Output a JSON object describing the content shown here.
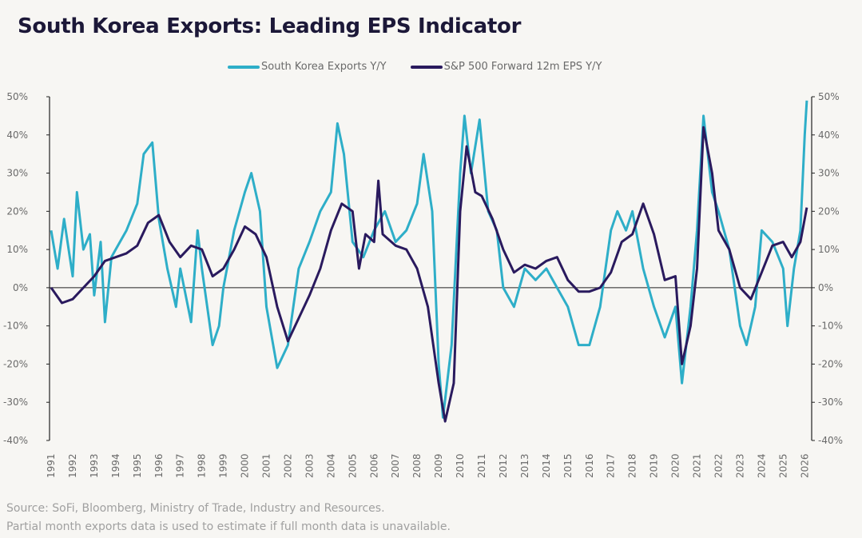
{
  "chart_data": {
    "type": "line",
    "title": "South Korea Exports: Leading EPS Indicator",
    "xlabel": "",
    "ylabel": "",
    "xlim": [
      1991,
      2026.2
    ],
    "ylim": [
      -40,
      50
    ],
    "yticks": [
      "50%",
      "40%",
      "30%",
      "20%",
      "10%",
      "0%",
      "-10%",
      "-20%",
      "-30%",
      "-40%"
    ],
    "ytick_values": [
      50,
      40,
      30,
      20,
      10,
      0,
      -10,
      -20,
      -30,
      -40
    ],
    "xticks": [
      "1991",
      "1992",
      "1993",
      "1994",
      "1995",
      "1996",
      "1997",
      "1998",
      "1999",
      "2000",
      "2001",
      "2002",
      "2003",
      "2004",
      "2005",
      "2006",
      "2007",
      "2008",
      "2009",
      "2010",
      "2011",
      "2012",
      "2013",
      "2014",
      "2015",
      "2016",
      "2017",
      "2018",
      "2019",
      "2020",
      "2021",
      "2022",
      "2023",
      "2024",
      "2025",
      "2026"
    ],
    "legend_position": "top",
    "grid": false,
    "series": [
      {
        "name": "South Korea Exports Y/Y",
        "color": "#2eaec8",
        "points": [
          [
            1991,
            15
          ],
          [
            1991.3,
            5
          ],
          [
            1991.6,
            18
          ],
          [
            1992,
            3
          ],
          [
            1992.2,
            25
          ],
          [
            1992.5,
            10
          ],
          [
            1992.8,
            14
          ],
          [
            1993,
            -2
          ],
          [
            1993.3,
            12
          ],
          [
            1993.5,
            -9
          ],
          [
            1993.8,
            8
          ],
          [
            1994,
            10
          ],
          [
            1994.5,
            15
          ],
          [
            1995,
            22
          ],
          [
            1995.3,
            35
          ],
          [
            1995.7,
            38
          ],
          [
            1996,
            18
          ],
          [
            1996.4,
            5
          ],
          [
            1996.8,
            -5
          ],
          [
            1997,
            5
          ],
          [
            1997.5,
            -9
          ],
          [
            1997.8,
            15
          ],
          [
            1998,
            5
          ],
          [
            1998.5,
            -15
          ],
          [
            1998.8,
            -10
          ],
          [
            1999,
            0
          ],
          [
            1999.5,
            15
          ],
          [
            2000,
            25
          ],
          [
            2000.3,
            30
          ],
          [
            2000.7,
            20
          ],
          [
            2001,
            -5
          ],
          [
            2001.5,
            -21
          ],
          [
            2002,
            -15
          ],
          [
            2002.5,
            5
          ],
          [
            2003,
            12
          ],
          [
            2003.5,
            20
          ],
          [
            2004,
            25
          ],
          [
            2004.3,
            43
          ],
          [
            2004.6,
            35
          ],
          [
            2005,
            12
          ],
          [
            2005.5,
            8
          ],
          [
            2006,
            15
          ],
          [
            2006.5,
            20
          ],
          [
            2007,
            12
          ],
          [
            2007.5,
            15
          ],
          [
            2008,
            22
          ],
          [
            2008.3,
            35
          ],
          [
            2008.7,
            20
          ],
          [
            2009,
            -20
          ],
          [
            2009.2,
            -34
          ],
          [
            2009.6,
            -15
          ],
          [
            2010,
            30
          ],
          [
            2010.2,
            45
          ],
          [
            2010.5,
            30
          ],
          [
            2010.9,
            44
          ],
          [
            2011.3,
            20
          ],
          [
            2011.7,
            15
          ],
          [
            2012,
            0
          ],
          [
            2012.5,
            -5
          ],
          [
            2013,
            5
          ],
          [
            2013.5,
            2
          ],
          [
            2014,
            5
          ],
          [
            2014.5,
            0
          ],
          [
            2015,
            -5
          ],
          [
            2015.5,
            -15
          ],
          [
            2016,
            -15
          ],
          [
            2016.5,
            -5
          ],
          [
            2017,
            15
          ],
          [
            2017.3,
            20
          ],
          [
            2017.7,
            15
          ],
          [
            2018,
            20
          ],
          [
            2018.5,
            5
          ],
          [
            2019,
            -5
          ],
          [
            2019.5,
            -13
          ],
          [
            2020,
            -5
          ],
          [
            2020.3,
            -25
          ],
          [
            2020.7,
            -5
          ],
          [
            2021,
            15
          ],
          [
            2021.3,
            45
          ],
          [
            2021.7,
            25
          ],
          [
            2022,
            20
          ],
          [
            2022.5,
            10
          ],
          [
            2023,
            -10
          ],
          [
            2023.3,
            -15
          ],
          [
            2023.7,
            -5
          ],
          [
            2024,
            15
          ],
          [
            2024.5,
            12
          ],
          [
            2025,
            5
          ],
          [
            2025.2,
            -10
          ],
          [
            2025.5,
            5
          ],
          [
            2025.8,
            15
          ],
          [
            2026,
            40
          ],
          [
            2026.1,
            49
          ]
        ]
      },
      {
        "name": "S&P 500 Forward 12m EPS Y/Y",
        "color": "#2a1a5e",
        "points": [
          [
            1991,
            0
          ],
          [
            1991.5,
            -4
          ],
          [
            1992,
            -3
          ],
          [
            1992.5,
            0
          ],
          [
            1993,
            3
          ],
          [
            1993.5,
            7
          ],
          [
            1994,
            8
          ],
          [
            1994.5,
            9
          ],
          [
            1995,
            11
          ],
          [
            1995.5,
            17
          ],
          [
            1996,
            19
          ],
          [
            1996.5,
            12
          ],
          [
            1997,
            8
          ],
          [
            1997.5,
            11
          ],
          [
            1998,
            10
          ],
          [
            1998.5,
            3
          ],
          [
            1999,
            5
          ],
          [
            1999.5,
            10
          ],
          [
            2000,
            16
          ],
          [
            2000.5,
            14
          ],
          [
            2001,
            8
          ],
          [
            2001.5,
            -5
          ],
          [
            2002,
            -14
          ],
          [
            2002.5,
            -8
          ],
          [
            2003,
            -2
          ],
          [
            2003.5,
            5
          ],
          [
            2004,
            15
          ],
          [
            2004.5,
            22
          ],
          [
            2005,
            20
          ],
          [
            2005.3,
            5
          ],
          [
            2005.6,
            14
          ],
          [
            2006,
            12
          ],
          [
            2006.2,
            28
          ],
          [
            2006.4,
            14
          ],
          [
            2007,
            11
          ],
          [
            2007.5,
            10
          ],
          [
            2008,
            5
          ],
          [
            2008.5,
            -5
          ],
          [
            2009,
            -25
          ],
          [
            2009.3,
            -35
          ],
          [
            2009.7,
            -25
          ],
          [
            2010,
            20
          ],
          [
            2010.3,
            37
          ],
          [
            2010.7,
            25
          ],
          [
            2011,
            24
          ],
          [
            2011.5,
            18
          ],
          [
            2012,
            10
          ],
          [
            2012.5,
            4
          ],
          [
            2013,
            6
          ],
          [
            2013.5,
            5
          ],
          [
            2014,
            7
          ],
          [
            2014.5,
            8
          ],
          [
            2015,
            2
          ],
          [
            2015.5,
            -1
          ],
          [
            2016,
            -1
          ],
          [
            2016.5,
            0
          ],
          [
            2017,
            4
          ],
          [
            2017.5,
            12
          ],
          [
            2018,
            14
          ],
          [
            2018.5,
            22
          ],
          [
            2019,
            14
          ],
          [
            2019.5,
            2
          ],
          [
            2020,
            3
          ],
          [
            2020.3,
            -20
          ],
          [
            2020.7,
            -10
          ],
          [
            2021,
            5
          ],
          [
            2021.3,
            42
          ],
          [
            2021.7,
            30
          ],
          [
            2022,
            15
          ],
          [
            2022.5,
            10
          ],
          [
            2023,
            0
          ],
          [
            2023.5,
            -3
          ],
          [
            2024,
            4
          ],
          [
            2024.5,
            11
          ],
          [
            2025,
            12
          ],
          [
            2025.4,
            8
          ],
          [
            2025.8,
            12
          ],
          [
            2026.1,
            21
          ]
        ]
      }
    ]
  },
  "footer": {
    "source": "Source: SoFi, Bloomberg, Ministry of Trade, Industry and Resources.",
    "note": "Partial month exports data is used to estimate if full month data is unavailable."
  }
}
